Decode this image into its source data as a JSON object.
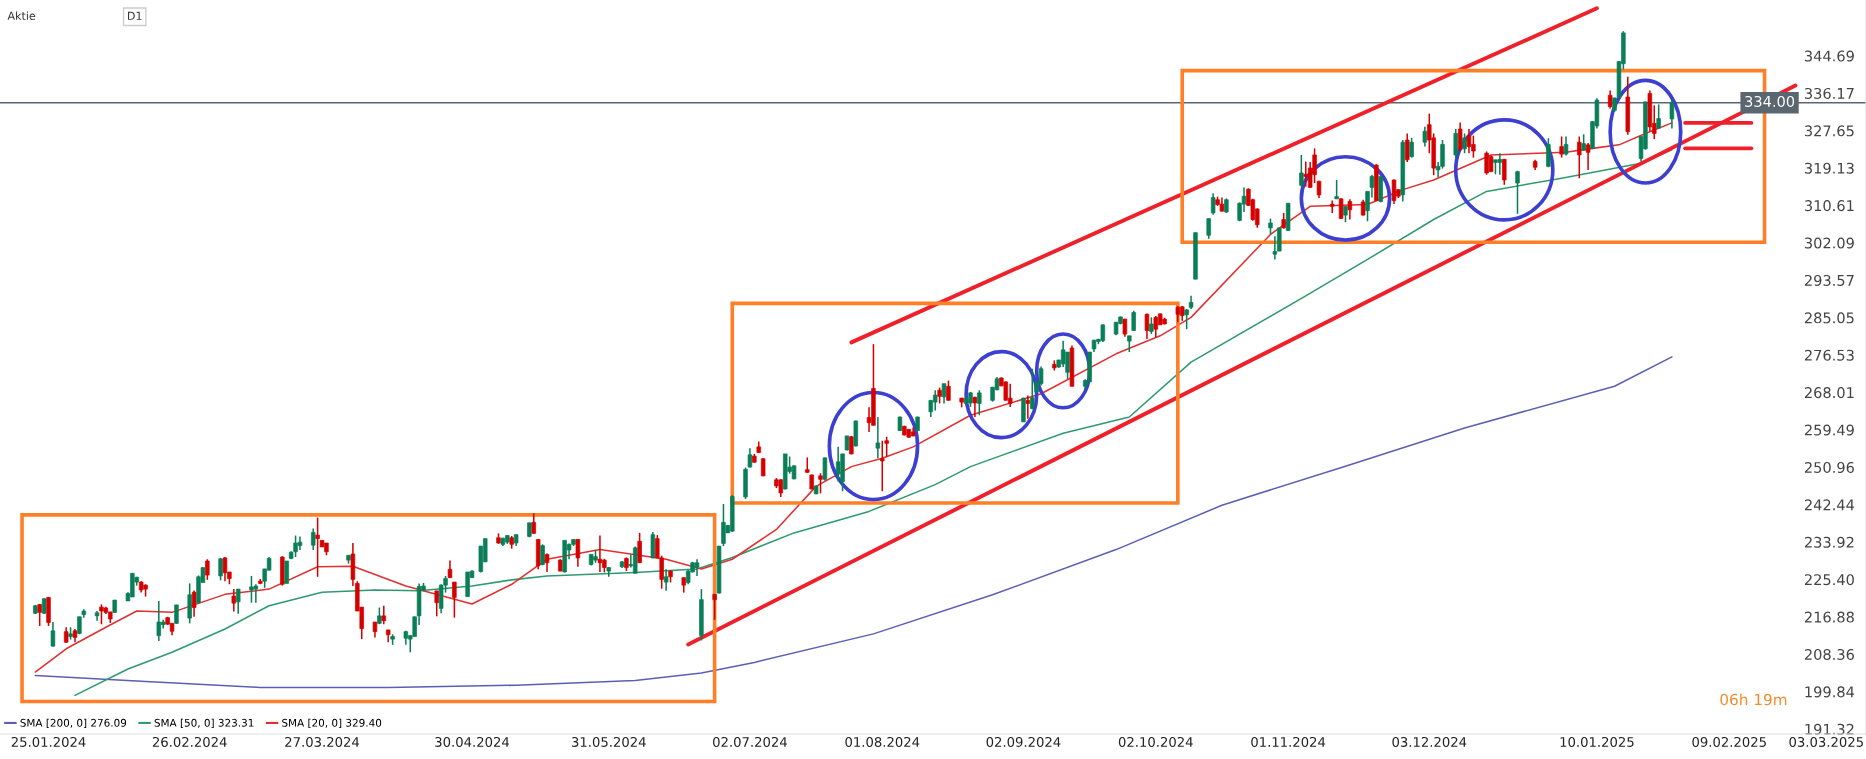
{
  "chart_data": {
    "type": "candlestick",
    "title": "Aktie",
    "subtitle": "D1",
    "annotations": [
      "06h 19m"
    ],
    "colors": [
      "#0a7e57",
      "#d50000",
      "#0a7e57",
      "#d50000",
      "#0a7e57",
      "#d50000",
      "#0a7e57",
      "#d50000",
      "#0a7e57",
      "#0a7e57",
      "#0a7e57",
      "#d50000",
      "#d50000",
      "#d50000",
      "#0a7e57",
      "#0a7e57",
      "#0a7e57",
      "#0a7e57",
      "#d50000",
      "#d50000",
      "#0a7e57",
      "#0a7e57",
      "#d50000",
      "#d50000",
      "#0a7e57",
      "#0a7e57",
      "#d50000",
      "#0a7e57",
      "#0a7e57",
      "#d50000",
      "#0a7e57",
      "#d50000",
      "#d50000",
      "#d50000",
      "#0a7e57",
      "#0a7e57",
      "#0a7e57",
      "#d50000",
      "#0a7e57",
      "#0a7e57",
      "#d50000",
      "#0a7e57",
      "#0a7e57",
      "#0a7e57",
      "#0a7e57",
      "#0a7e57",
      "#d50000",
      "#d50000",
      "#d50000",
      "#0a7e57",
      "#d50000",
      "#d50000",
      "#d50000",
      "#d50000",
      "#0a7e57",
      "#d50000",
      "#d50000",
      "#0a7e57",
      "#0a7e57",
      "#0a7e57",
      "#0a7e57",
      "#0a7e57",
      "#0a7e57",
      "#d50000",
      "#0a7e57",
      "#0a7e57",
      "#d50000",
      "#d50000",
      "#0a7e57",
      "#0a7e57",
      "#0a7e57",
      "#0a7e57",
      "#d50000",
      "#0a7e57",
      "#0a7e57",
      "#d50000",
      "#0a7e57",
      "#0a7e57",
      "#d50000",
      "#d50000",
      "#0a7e57",
      "#d50000",
      "#d50000",
      "#0a7e57",
      "#0a7e57",
      "#0a7e57",
      "#d50000",
      "#0a7e57",
      "#0a7e57",
      "#d50000",
      "#d50000",
      "#0a7e57",
      "#0a7e57",
      "#d50000",
      "#0a7e57",
      "#0a7e57",
      "#d50000",
      "#0a7e57",
      "#d50000",
      "#d50000",
      "#0a7e57",
      "#d50000",
      "#d50000",
      "#0a7e57",
      "#0a7e57",
      "#0a7e57",
      "#0a7e57",
      "#d50000",
      "#0a7e57",
      "#0a7e57",
      "#0a7e57",
      "#0a7e57",
      "#0a7e57",
      "#0a7e57",
      "#d50000",
      "#d50000",
      "#d50000",
      "#d50000",
      "#d50000",
      "#0a7e57",
      "#0a7e57",
      "#0a7e57",
      "#d50000",
      "#d50000",
      "#0a7e57",
      "#d50000",
      "#0a7e57",
      "#0a7e57",
      "#0a7e57",
      "#0a7e57",
      "#d50000",
      "#0a7e57",
      "#d50000",
      "#d50000",
      "#0a7e57",
      "#d50000",
      "#d50000",
      "#0a7e57",
      "#d50000",
      "#d50000",
      "#d50000",
      "#0a7e57",
      "#0a7e57",
      "#0a7e57",
      "#d50000",
      "#0a7e57",
      "#d50000",
      "#d50000",
      "#0a7e57",
      "#0a7e57",
      "#d50000",
      "#0a7e57",
      "#0a7e57",
      "#0a7e57",
      "#d50000",
      "#d50000",
      "#d50000",
      "#0a7e57",
      "#d50000",
      "#0a7e57",
      "#0a7e57",
      "#0a7e57",
      "#d50000",
      "#0a7e57",
      "#0a7e57",
      "#0a7e57",
      "#d50000",
      "#0a7e57",
      "#0a7e57",
      "#0a7e57",
      "#0a7e57",
      "#0a7e57",
      "#0a7e57",
      "#0a7e57",
      "#d50000",
      "#0a7e57",
      "#0a7e57",
      "#d50000",
      "#0a7e57",
      "#d50000",
      "#d50000",
      "#d50000",
      "#d50000",
      "#d50000",
      "#0a7e57",
      "#0a7e57",
      "#0a7e57",
      "#0a7e57",
      "#0a7e57",
      "#d50000",
      "#d50000",
      "#0a7e57",
      "#0a7e57",
      "#0a7e57",
      "#d50000",
      "#d50000",
      "#d50000",
      "#0a7e57",
      "#0a7e57",
      "#0a7e57",
      "#d50000",
      "#0a7e57",
      "#0a7e57",
      "#d50000",
      "#d50000",
      "#d50000",
      "#d50000",
      "#d50000",
      "#0a7e57",
      "#d50000",
      "#0a7e57",
      "#d50000",
      "#d50000",
      "#0a7e57",
      "#0a7e57",
      "#d50000",
      "#0a7e57",
      "#d50000",
      "#d50000",
      "#0a7e57",
      "#d50000",
      "#0a7e57",
      "#0a7e57",
      "#d50000",
      "#d50000",
      "#0a7e57",
      "#0a7e57",
      "#0a7e57",
      "#d50000",
      "#0a7e57",
      "#d50000",
      "#d50000",
      "#d50000",
      "#d50000",
      "#0a7e57",
      "#0a7e57",
      "#d50000",
      "#0a7e57",
      "#d50000",
      "#0a7e57",
      "#d50000",
      "#0a7e57",
      "#d50000",
      "#0a7e57",
      "#d50000",
      "#0a7e57",
      "#0a7e57",
      "#d50000",
      "#0a7e57",
      "#0a7e57",
      "#0a7e57",
      "#d50000",
      "#0a7e57",
      "#0a7e57",
      "#d50000",
      "#d50000",
      "#0a7e57",
      "#0a7e57"
    ],
    "x": [
      "2024-01-22",
      "2024-01-23",
      "2024-01-24",
      "2024-01-25",
      "2024-01-26",
      "2024-01-29",
      "2024-01-30",
      "2024-01-31",
      "2024-02-01",
      "2024-02-02",
      "2024-02-05",
      "2024-02-06",
      "2024-02-07",
      "2024-02-08",
      "2024-02-09",
      "2024-02-12",
      "2024-02-13",
      "2024-02-14",
      "2024-02-15",
      "2024-02-16",
      "2024-02-19",
      "2024-02-20",
      "2024-02-21",
      "2024-02-22",
      "2024-02-23",
      "2024-02-26",
      "2024-02-27",
      "2024-02-28",
      "2024-02-29",
      "2024-03-01",
      "2024-03-04",
      "2024-03-05",
      "2024-03-06",
      "2024-03-07",
      "2024-03-08",
      "2024-03-11",
      "2024-03-12",
      "2024-03-13",
      "2024-03-14",
      "2024-03-15",
      "2024-03-18",
      "2024-03-19",
      "2024-03-20",
      "2024-03-21",
      "2024-03-22",
      "2024-03-25",
      "2024-03-26",
      "2024-03-27",
      "2024-03-28",
      "2024-04-02",
      "2024-04-03",
      "2024-04-04",
      "2024-04-05",
      "2024-04-08",
      "2024-04-09",
      "2024-04-10",
      "2024-04-11",
      "2024-04-12",
      "2024-04-15",
      "2024-04-16",
      "2024-04-17",
      "2024-04-18",
      "2024-04-19",
      "2024-04-22",
      "2024-04-23",
      "2024-04-24",
      "2024-04-25",
      "2024-04-26",
      "2024-04-29",
      "2024-04-30",
      "2024-05-02",
      "2024-05-03",
      "2024-05-06",
      "2024-05-07",
      "2024-05-08",
      "2024-05-09",
      "2024-05-10",
      "2024-05-13",
      "2024-05-14",
      "2024-05-15",
      "2024-05-16",
      "2024-05-17",
      "2024-05-20",
      "2024-05-21",
      "2024-05-22",
      "2024-05-23",
      "2024-05-24",
      "2024-05-27",
      "2024-05-28",
      "2024-05-29",
      "2024-05-30",
      "2024-05-31",
      "2024-06-03",
      "2024-06-04",
      "2024-06-05",
      "2024-06-06",
      "2024-06-07",
      "2024-06-10",
      "2024-06-11",
      "2024-06-12",
      "2024-06-13",
      "2024-06-14",
      "2024-06-17",
      "2024-06-18",
      "2024-06-19",
      "2024-06-20",
      "2024-06-21",
      "2024-06-24",
      "2024-06-25",
      "2024-06-26",
      "2024-06-27",
      "2024-06-28",
      "2024-07-01",
      "2024-07-02",
      "2024-07-03",
      "2024-07-04",
      "2024-07-05",
      "2024-07-08",
      "2024-07-09",
      "2024-07-10",
      "2024-07-11",
      "2024-07-12",
      "2024-07-15",
      "2024-07-16",
      "2024-07-17",
      "2024-07-18",
      "2024-07-19",
      "2024-07-22",
      "2024-07-23",
      "2024-07-24",
      "2024-07-25",
      "2024-07-26",
      "2024-07-29",
      "2024-07-30",
      "2024-07-31",
      "2024-08-01",
      "2024-08-02",
      "2024-08-05",
      "2024-08-06",
      "2024-08-07",
      "2024-08-08",
      "2024-08-09",
      "2024-08-12",
      "2024-08-13",
      "2024-08-14",
      "2024-08-15",
      "2024-08-16",
      "2024-08-19",
      "2024-08-20",
      "2024-08-21",
      "2024-08-22",
      "2024-08-23",
      "2024-08-26",
      "2024-08-27",
      "2024-08-28",
      "2024-08-29",
      "2024-08-30",
      "2024-09-02",
      "2024-09-03",
      "2024-09-04",
      "2024-09-05",
      "2024-09-06",
      "2024-09-09",
      "2024-09-10",
      "2024-09-11",
      "2024-09-12",
      "2024-09-13",
      "2024-09-16",
      "2024-09-17",
      "2024-09-18",
      "2024-09-19",
      "2024-09-20",
      "2024-09-23",
      "2024-09-24",
      "2024-09-25",
      "2024-09-26",
      "2024-09-27",
      "2024-09-30",
      "2024-10-01",
      "2024-10-02",
      "2024-10-03",
      "2024-10-04",
      "2024-10-07",
      "2024-10-08",
      "2024-10-09",
      "2024-10-10",
      "2024-10-11",
      "2024-10-14",
      "2024-10-15",
      "2024-10-16",
      "2024-10-17",
      "2024-10-18",
      "2024-10-21",
      "2024-10-22",
      "2024-10-23",
      "2024-10-24",
      "2024-10-25",
      "2024-10-28",
      "2024-10-29",
      "2024-10-30",
      "2024-10-31",
      "2024-11-01",
      "2024-11-04",
      "2024-11-05",
      "2024-11-06",
      "2024-11-07",
      "2024-11-08",
      "2024-11-11",
      "2024-11-12",
      "2024-11-13",
      "2024-11-14",
      "2024-11-15",
      "2024-11-18",
      "2024-11-19",
      "2024-11-20",
      "2024-11-21",
      "2024-11-22",
      "2024-11-25",
      "2024-11-26",
      "2024-11-27",
      "2024-11-28",
      "2024-11-29",
      "2024-12-02",
      "2024-12-03",
      "2024-12-04",
      "2024-12-05",
      "2024-12-06",
      "2024-12-09",
      "2024-12-10",
      "2024-12-11",
      "2024-12-12",
      "2024-12-13",
      "2024-12-16",
      "2024-12-17",
      "2024-12-18",
      "2024-12-19",
      "2024-12-20",
      "2024-12-23",
      "2024-12-27",
      "2024-12-30",
      "2025-01-02",
      "2025-01-03",
      "2025-01-06",
      "2025-01-07",
      "2025-01-08",
      "2025-01-09",
      "2025-01-10",
      "2025-01-13",
      "2025-01-14",
      "2025-01-15",
      "2025-01-16",
      "2025-01-17",
      "2025-01-20",
      "2025-01-21",
      "2025-01-22",
      "2025-01-23",
      "2025-01-24",
      "2025-01-27"
    ],
    "ohlc": [
      [
        217.7,
        219.6,
        217.5,
        219.4
      ],
      [
        219.7,
        219.8,
        214.8,
        217.9
      ],
      [
        217.7,
        221.1,
        217.5,
        221.0
      ],
      [
        221.3,
        221.4,
        214.8,
        215.6
      ],
      [
        210.2,
        215.7,
        210.1,
        213.7
      ],
      [
        213.5,
        214.5,
        210.9,
        211.1
      ],
      [
        212.4,
        214.5,
        211.7,
        213.0
      ],
      [
        213.7,
        214.1,
        211.1,
        212.2
      ],
      [
        213.1,
        216.9,
        212.9,
        216.9
      ],
      [
        217.4,
        218.6,
        216.7,
        218.2
      ],
      [
        217.1,
        218.2,
        216.0,
        217.8
      ],
      [
        219.1,
        219.7,
        215.2,
        218.2
      ],
      [
        218.9,
        219.2,
        217.5,
        217.9
      ],
      [
        218.0,
        218.0,
        215.5,
        216.4
      ],
      [
        217.9,
        220.7,
        217.8,
        220.7
      ],
      [
        220.5,
        222.5,
        220.5,
        222.2
      ],
      [
        221.4,
        226.8,
        221.4,
        226.8
      ],
      [
        224.8,
        226.0,
        224.0,
        225.9
      ],
      [
        224.8,
        225.0,
        222.4,
        223.0
      ],
      [
        224.1,
        224.3,
        221.5,
        223.2
      ],
      [
        212.6,
        220.5,
        211.4,
        215.7
      ],
      [
        215.1,
        216.2,
        214.2,
        215.7
      ],
      [
        216.7,
        216.9,
        215.1,
        215.2
      ],
      [
        215.4,
        215.5,
        212.7,
        213.6
      ],
      [
        215.4,
        219.6,
        215.3,
        219.6
      ],
      [
        216.6,
        224.5,
        215.4,
        221.9
      ],
      [
        222.5,
        222.9,
        216.9,
        219.0
      ],
      [
        220.1,
        226.3,
        219.9,
        226.0
      ],
      [
        224.7,
        228.1,
        224.7,
        228.1
      ],
      [
        229.6,
        230.0,
        225.3,
        226.4
      ],
      [
        226.2,
        230.3,
        225.2,
        230.1
      ],
      [
        230.3,
        230.5,
        225.0,
        226.9
      ],
      [
        227.1,
        227.1,
        224.3,
        225.6
      ],
      [
        221.6,
        223.2,
        218.1,
        220.0
      ],
      [
        220.3,
        223.2,
        217.6,
        223.2
      ],
      [
        223.0,
        226.2,
        220.1,
        223.7
      ],
      [
        223.2,
        224.3,
        220.1,
        223.9
      ],
      [
        225.0,
        225.5,
        224.3,
        224.5
      ],
      [
        225.0,
        227.8,
        223.5,
        227.8
      ],
      [
        227.5,
        230.5,
        227.5,
        230.2
      ],
      [
        230.5,
        230.7,
        224.0,
        224.3
      ],
      [
        224.5,
        229.6,
        224.5,
        229.6
      ],
      [
        230.2,
        231.8,
        230.0,
        231.6
      ],
      [
        231.7,
        235.4,
        230.5,
        233.7
      ],
      [
        233.1,
        235.2,
        232.1,
        233.9
      ],
      [
        233.2,
        237.0,
        232.1,
        236.1
      ],
      [
        235.5,
        239.5,
        226.0,
        234.7
      ],
      [
        234.3,
        234.3,
        232.8,
        232.8
      ],
      [
        233.7,
        233.7,
        230.9,
        231.7
      ],
      [
        229.8,
        230.9,
        229.0,
        230.9
      ],
      [
        231.2,
        233.7,
        223.9,
        225.4
      ],
      [
        224.5,
        225.0,
        218.2,
        218.2
      ],
      [
        219.1,
        219.1,
        211.8,
        214.2
      ],
      [
        215.7,
        215.7,
        212.2,
        213.5
      ],
      [
        215.4,
        219.0,
        215.2,
        217.1
      ],
      [
        217.1,
        219.4,
        215.2,
        216.0
      ],
      [
        213.9,
        213.9,
        211.1,
        212.8
      ],
      [
        211.8,
        212.9,
        210.5,
        212.4
      ],
      [
        212.0,
        213.7,
        210.5,
        213.5
      ],
      [
        211.8,
        212.7,
        208.8,
        212.6
      ],
      [
        212.4,
        216.9,
        212.4,
        216.9
      ],
      [
        217.1,
        224.5,
        215.0,
        223.8
      ],
      [
        223.0,
        224.6,
        222.7,
        223.9
      ],
      [
        222.8,
        222.8,
        217.0,
        220.1
      ],
      [
        218.8,
        224.3,
        217.7,
        224.1
      ],
      [
        224.1,
        226.2,
        222.4,
        225.6
      ],
      [
        227.7,
        229.7,
        225.8,
        225.8
      ],
      [
        224.8,
        224.8,
        216.7,
        221.3
      ],
      [
        221.5,
        227.1,
        221.5,
        227.1
      ],
      [
        225.8,
        227.5,
        225.7,
        227.3
      ],
      [
        227.2,
        233.0,
        227.0,
        233.0
      ],
      [
        229.4,
        234.7,
        229.4,
        234.7
      ],
      [
        234.9,
        235.9,
        233.5,
        233.7
      ],
      [
        233.4,
        234.9,
        233.0,
        234.8
      ],
      [
        233.9,
        235.5,
        233.5,
        235.4
      ],
      [
        234.9,
        235.3,
        232.4,
        233.4
      ],
      [
        233.7,
        235.7,
        233.0,
        235.6
      ],
      [
        235.2,
        238.3,
        235.0,
        238.3
      ],
      [
        238.4,
        240.5,
        235.8,
        235.9
      ],
      [
        234.5,
        234.6,
        227.7,
        228.5
      ],
      [
        228.8,
        233.4,
        228.6,
        233.1
      ],
      [
        231.1,
        231.3,
        227.1,
        229.2
      ],
      [
        229.8,
        230.0,
        227.3,
        227.3
      ],
      [
        227.1,
        234.3,
        227.0,
        234.3
      ],
      [
        232.1,
        233.6,
        230.0,
        233.4
      ],
      [
        233.4,
        234.6,
        233.0,
        234.5
      ],
      [
        234.5,
        234.6,
        228.3,
        230.3
      ],
      [
        228.8,
        231.1,
        228.6,
        231.1
      ],
      [
        229.8,
        232.1,
        229.2,
        230.6
      ],
      [
        230.0,
        235.4,
        227.1,
        229.2
      ],
      [
        229.8,
        230.1,
        227.0,
        228.1
      ],
      [
        227.3,
        228.2,
        226.0,
        228.1
      ],
      [
        228.3,
        229.6,
        228.0,
        229.4
      ],
      [
        230.2,
        230.4,
        227.3,
        228.1
      ],
      [
        228.5,
        231.1,
        228.1,
        228.8
      ],
      [
        226.8,
        232.9,
        226.8,
        232.6
      ],
      [
        234.1,
        236.0,
        229.2,
        229.2
      ],
      [
        230.3,
        236.2,
        230.2,
        235.6
      ],
      [
        234.7,
        235.5,
        230.2,
        230.3
      ],
      [
        230.3,
        230.8,
        223.3,
        225.4
      ],
      [
        224.8,
        227.7,
        222.8,
        226.0
      ],
      [
        227.3,
        227.5,
        224.7,
        226.0
      ],
      [
        225.8,
        225.9,
        222.4,
        224.1
      ],
      [
        224.7,
        227.6,
        224.3,
        227.3
      ],
      [
        227.1,
        229.4,
        227.0,
        229.2
      ],
      [
        228.2,
        230.0,
        226.2,
        229.2
      ],
      [
        212.6,
        223.2,
        211.5,
        220.8
      ],
      [
        222.0,
        222.1,
        216.2,
        220.8
      ],
      [
        222.3,
        233.0,
        222.2,
        233.0
      ],
      [
        233.6,
        242.6,
        233.0,
        238.4
      ],
      [
        236.0,
        237.8,
        236.0,
        237.7
      ],
      [
        236.4,
        244.6,
        236.2,
        244.3
      ],
      [
        244.2,
        250.9,
        243.7,
        250.5
      ],
      [
        251.0,
        255.3,
        250.9,
        253.8
      ],
      [
        253.5,
        254.0,
        252.0,
        252.1
      ],
      [
        255.6,
        256.8,
        254.2,
        254.3
      ],
      [
        252.9,
        253.0,
        248.9,
        249.0
      ],
      [
        248.1,
        248.5,
        246.2,
        246.7
      ],
      [
        248.1,
        248.2,
        244.2,
        245.1
      ],
      [
        246.0,
        254.0,
        245.9,
        254.0
      ],
      [
        250.0,
        253.4,
        249.5,
        251.0
      ],
      [
        248.3,
        251.3,
        248.2,
        251.3
      ],
      [
        250.4,
        253.2,
        249.7,
        249.8
      ],
      [
        249.2,
        249.3,
        245.9,
        246.0
      ],
      [
        244.9,
        246.8,
        244.8,
        246.7
      ],
      [
        249.0,
        249.6,
        245.0,
        248.2
      ],
      [
        248.2,
        253.2,
        247.9,
        253.1
      ],
      [
        249.4,
        255.6,
        247.7,
        252.2
      ],
      [
        247.7,
        254.0,
        245.5,
        254.0
      ],
      [
        254.9,
        258.1,
        254.8,
        258.1
      ],
      [
        257.9,
        258.1,
        253.9,
        254.0
      ],
      [
        255.8,
        261.6,
        255.7,
        261.5
      ],
      [
        262.3,
        264.6,
        259.0,
        261.1
      ],
      [
        268.9,
        279.0,
        260.5,
        260.5
      ],
      [
        255.3,
        262.4,
        253.0,
        256.5
      ],
      [
        252.9,
        257.0,
        245.5,
        252.4
      ],
      [
        257.0,
        257.9,
        253.4,
        256.4
      ],
      [
        259.3,
        262.5,
        259.2,
        262.4
      ],
      [
        260.3,
        260.4,
        258.2,
        258.3
      ],
      [
        259.6,
        259.6,
        257.7,
        257.8
      ],
      [
        259.0,
        260.0,
        258.0,
        258.1
      ],
      [
        259.3,
        262.5,
        259.2,
        262.4
      ],
      [
        263.6,
        266.2,
        262.4,
        266.2
      ],
      [
        265.8,
        268.5,
        263.9,
        267.4
      ],
      [
        268.5,
        269.1,
        265.5,
        267.1
      ],
      [
        267.0,
        270.0,
        265.5,
        270.0
      ],
      [
        269.4,
        270.7,
        266.2,
        266.2
      ],
      [
        266.7,
        266.8,
        264.6,
        265.8
      ],
      [
        265.5,
        266.8,
        265.2,
        266.7
      ],
      [
        265.6,
        268.1,
        264.7,
        267.9
      ],
      [
        266.9,
        267.0,
        262.4,
        265.6
      ],
      [
        265.5,
        268.5,
        262.8,
        267.9
      ],
      [
        266.2,
        269.2,
        265.9,
        269.2
      ],
      [
        268.6,
        271.5,
        268.5,
        271.1
      ],
      [
        271.3,
        271.4,
        269.4,
        269.5
      ],
      [
        270.4,
        270.5,
        266.2,
        266.2
      ],
      [
        266.7,
        270.0,
        264.7,
        265.5
      ],
      [
        261.3,
        266.8,
        261.3,
        266.7
      ],
      [
        266.2,
        267.3,
        262.0,
        265.5
      ],
      [
        264.3,
        273.4,
        264.2,
        266.8
      ],
      [
        268.1,
        270.4,
        267.9,
        270.4
      ],
      [
        270.0,
        273.9,
        269.6,
        273.4
      ],
      [
        274.4,
        275.3,
        273.0,
        273.6
      ],
      [
        273.8,
        275.4,
        273.6,
        275.4
      ],
      [
        274.5,
        279.8,
        273.8,
        277.7
      ],
      [
        272.6,
        277.2,
        271.1,
        277.2
      ],
      [
        278.1,
        278.7,
        269.4,
        269.4
      ],
      [
        269.4,
        271.0,
        268.5,
        270.7
      ],
      [
        270.4,
        277.2,
        270.4,
        277.2
      ],
      [
        277.9,
        280.0,
        277.2,
        279.9
      ],
      [
        279.6,
        280.2,
        279.0,
        280.1
      ],
      [
        279.8,
        283.5,
        279.5,
        283.4
      ],
      [
        281.3,
        284.0,
        281.0,
        284.0
      ],
      [
        283.7,
        285.3,
        283.5,
        285.2
      ],
      [
        284.7,
        284.8,
        280.7,
        281.3
      ],
      [
        279.7,
        280.9,
        277.2,
        280.9
      ],
      [
        282.1,
        286.6,
        282.0,
        286.2
      ],
      [
        285.8,
        286.0,
        280.2,
        282.1
      ],
      [
        281.9,
        285.1,
        281.3,
        283.6
      ],
      [
        285.1,
        285.4,
        280.6,
        282.4
      ],
      [
        285.9,
        286.0,
        283.4,
        283.4
      ],
      [
        284.7,
        285.0,
        283.5,
        283.6
      ],
      [
        287.4,
        287.7,
        284.0,
        285.8
      ],
      [
        287.5,
        287.7,
        284.3,
        285.5
      ],
      [
        285.7,
        287.0,
        282.4,
        286.8
      ],
      [
        287.4,
        290.0,
        287.0,
        288.5
      ],
      [
        293.8,
        304.4,
        293.8,
        304.4
      ],
      [
        303.8,
        307.6,
        303.0,
        307.6
      ],
      [
        308.9,
        313.4,
        308.5,
        312.4
      ],
      [
        311.9,
        312.6,
        310.5,
        310.8
      ],
      [
        310.9,
        312.4,
        309.2,
        309.3
      ],
      [
        309.1,
        312.2,
        308.9,
        311.9
      ],
      [
        307.2,
        311.3,
        307.0,
        311.1
      ],
      [
        310.9,
        314.7,
        309.1,
        312.7
      ],
      [
        314.3,
        314.5,
        310.6,
        310.6
      ],
      [
        311.9,
        312.1,
        307.1,
        307.4
      ],
      [
        309.8,
        309.9,
        305.5,
        306.2
      ],
      [
        305.5,
        307.6,
        304.0,
        306.6
      ],
      [
        299.5,
        303.6,
        298.3,
        300.1
      ],
      [
        300.2,
        305.5,
        300.2,
        305.5
      ],
      [
        307.4,
        308.9,
        305.3,
        305.5
      ],
      [
        304.9,
        311.1,
        304.8,
        311.1
      ],
      [
        315.2,
        322.1,
        314.9,
        318.0
      ],
      [
        317.7,
        320.6,
        314.9,
        317.2
      ],
      [
        319.1,
        320.5,
        314.7,
        314.7
      ],
      [
        322.1,
        323.6,
        315.7,
        317.6
      ],
      [
        316.1,
        316.2,
        312.3,
        313.0
      ],
      [
        310.9,
        311.7,
        308.9,
        310.4
      ],
      [
        312.1,
        316.4,
        312.1,
        312.6
      ],
      [
        312.1,
        312.3,
        307.6,
        307.6
      ],
      [
        308.4,
        310.4,
        306.8,
        310.4
      ],
      [
        311.5,
        312.0,
        307.4,
        309.6
      ],
      [
        311.4,
        311.9,
        308.3,
        308.4
      ],
      [
        309.4,
        313.8,
        307.0,
        313.8
      ],
      [
        314.7,
        317.6,
        312.4,
        317.2
      ],
      [
        319.8,
        320.0,
        311.7,
        311.7
      ],
      [
        311.5,
        317.2,
        311.3,
        317.2
      ],
      [
        316.4,
        316.5,
        310.9,
        311.7
      ],
      [
        314.2,
        314.3,
        312.3,
        312.7
      ],
      [
        313.0,
        325.5,
        311.5,
        325.0
      ],
      [
        325.5,
        327.0,
        320.5,
        321.0
      ],
      [
        321.7,
        326.0,
        321.5,
        325.0
      ],
      [
        325.0,
        328.5,
        324.0,
        327.5
      ],
      [
        329.0,
        331.5,
        322.5,
        325.5
      ],
      [
        326.0,
        327.0,
        317.5,
        319.1
      ],
      [
        318.7,
        320.5,
        317.0,
        319.5
      ],
      [
        319.5,
        325.5,
        319.0,
        324.5
      ],
      [
        322.1,
        328.0,
        321.5,
        327.0
      ],
      [
        328.0,
        329.5,
        323.0,
        323.3
      ],
      [
        323.5,
        327.0,
        322.5,
        326.0
      ],
      [
        326.5,
        328.0,
        322.5,
        324.0
      ],
      [
        324.5,
        326.5,
        321.5,
        323.0
      ],
      [
        322.5,
        322.9,
        317.6,
        318.0
      ],
      [
        321.7,
        322.0,
        318.2,
        318.3
      ],
      [
        320.4,
        321.0,
        317.7,
        321.0
      ],
      [
        320.4,
        322.5,
        317.6,
        321.1
      ],
      [
        321.1,
        321.2,
        315.3,
        316.4
      ],
      [
        315.7,
        318.5,
        308.7,
        318.3
      ],
      [
        320.6,
        321.0,
        318.7,
        319.3
      ],
      [
        319.5,
        325.9,
        319.3,
        324.5
      ],
      [
        324.0,
        326.3,
        321.5,
        322.3
      ],
      [
        322.3,
        326.3,
        322.0,
        324.5
      ],
      [
        325.0,
        326.3,
        316.8,
        322.1
      ],
      [
        323.2,
        326.8,
        323.0,
        324.7
      ],
      [
        324.4,
        324.8,
        318.7,
        322.7
      ],
      [
        323.6,
        329.8,
        323.4,
        329.7
      ],
      [
        328.7,
        335.0,
        328.1,
        334.6
      ],
      [
        335.7,
        336.8,
        332.7,
        333.1
      ],
      [
        332.3,
        335.1,
        331.9,
        335.1
      ],
      [
        335.3,
        343.4,
        335.1,
        343.4
      ],
      [
        342.9,
        350.3,
        341.6,
        349.9
      ],
      [
        335.3,
        339.9,
        326.7,
        327.4
      ],
      [
        321.3,
        326.3,
        320.6,
        326.3
      ],
      [
        323.5,
        334.2,
        323.3,
        334.2
      ],
      [
        336.1,
        336.8,
        327.5,
        328.5
      ],
      [
        329.3,
        333.4,
        325.7,
        327.0
      ],
      [
        328.2,
        333.6,
        328.1,
        330.4
      ],
      [
        330.3,
        334.6,
        328.1,
        334.0
      ]
    ],
    "series": [
      {
        "type": "line",
        "name": "SMA [200, 0] 276.09",
        "color": "#5b5fb3",
        "x": [
          "2024-01-22",
          "2024-02-15",
          "2024-03-13",
          "2024-04-11",
          "2024-05-10",
          "2024-06-06",
          "2024-06-21",
          "2024-07-03",
          "2024-07-30",
          "2024-08-26",
          "2024-09-23",
          "2024-10-17",
          "2024-11-14",
          "2024-12-11",
          "2025-01-14",
          "2025-01-27"
        ],
        "values": [
          203.5,
          202.2,
          200.8,
          200.8,
          201.3,
          202.4,
          204.1,
          206.5,
          213.0,
          221.9,
          232.2,
          242.3,
          251.2,
          259.9,
          269.4,
          276.1
        ]
      },
      {
        "type": "line",
        "name": "SMA [50, 0] 323.31",
        "color": "#2e9a6e",
        "x": [
          "2024-01-31",
          "2024-02-12",
          "2024-02-22",
          "2024-03-05",
          "2024-03-15",
          "2024-03-27",
          "2024-04-08",
          "2024-04-18",
          "2024-04-30",
          "2024-05-09",
          "2024-05-17",
          "2024-06-06",
          "2024-06-20",
          "2024-06-28",
          "2024-07-12",
          "2024-07-29",
          "2024-08-13",
          "2024-08-21",
          "2024-09-11",
          "2024-09-26",
          "2024-10-10",
          "2024-11-05",
          "2024-11-19",
          "2024-12-04",
          "2024-12-16",
          "2025-01-02",
          "2025-01-20",
          "2025-01-27"
        ],
        "values": [
          199.0,
          205.0,
          208.8,
          214.1,
          219.4,
          222.5,
          223.0,
          222.8,
          223.9,
          225.3,
          226.2,
          227.0,
          227.8,
          230.4,
          236.0,
          240.9,
          247.0,
          251.1,
          258.7,
          262.4,
          274.9,
          290.0,
          298.3,
          307.4,
          313.8,
          316.8,
          320.2,
          323.3
        ]
      },
      {
        "type": "line",
        "name": "SMA [20, 0] 329.40",
        "color": "#e03030",
        "x": [
          "2024-01-22",
          "2024-01-29",
          "2024-02-07",
          "2024-02-14",
          "2024-02-22",
          "2024-03-05",
          "2024-03-15",
          "2024-03-26",
          "2024-04-03",
          "2024-04-15",
          "2024-04-30",
          "2024-05-09",
          "2024-05-17",
          "2024-05-29",
          "2024-06-13",
          "2024-06-21",
          "2024-06-28",
          "2024-07-08",
          "2024-07-17",
          "2024-07-25",
          "2024-08-01",
          "2024-08-08",
          "2024-08-21",
          "2024-09-06",
          "2024-09-23",
          "2024-10-03",
          "2024-10-10",
          "2024-10-28",
          "2024-11-06",
          "2024-11-19",
          "2024-11-27",
          "2024-12-04",
          "2024-12-17",
          "2025-01-03",
          "2025-01-09",
          "2025-01-15",
          "2025-01-21",
          "2025-01-27"
        ],
        "values": [
          204.3,
          209.6,
          214.5,
          218.2,
          217.9,
          222.0,
          223.2,
          228.3,
          228.4,
          223.9,
          219.8,
          224.3,
          230.0,
          232.2,
          230.0,
          227.8,
          230.0,
          236.8,
          246.6,
          251.1,
          253.0,
          255.6,
          262.8,
          267.7,
          276.8,
          280.9,
          285.1,
          304.0,
          310.4,
          310.8,
          314.2,
          316.4,
          322.1,
          322.7,
          323.6,
          324.4,
          327.0,
          329.4
        ]
      },
      {
        "type": "line",
        "color": "#f0202a",
        "x": [
          "2024-07-25",
          "2025-01-10"
        ],
        "values": [
          279.4,
          355.5
        ]
      },
      {
        "type": "line",
        "color": "#f0202a",
        "x": [
          "2024-06-18",
          "2025-02-24"
        ],
        "values": [
          210.6,
          337.9
        ]
      },
      {
        "type": "line",
        "color": "#f0202a",
        "x": [
          "2025-01-30",
          "2025-02-14"
        ],
        "values": [
          329.4,
          329.4
        ]
      },
      {
        "type": "line",
        "color": "#f0202a",
        "x": [
          "2025-01-30",
          "2025-02-14"
        ],
        "values": [
          323.6,
          323.6
        ]
      }
    ],
    "ref_lines": [
      {
        "axis": "y",
        "value": 334.0,
        "label": "334.00",
        "color": "#5a6670"
      }
    ],
    "xlim": [
      "2024-01-14",
      "2025-03-12"
    ],
    "xticks": [
      {
        "value": "2024-01-25",
        "label": "25.01.2024"
      },
      {
        "value": "2024-02-26",
        "label": "26.02.2024"
      },
      {
        "value": "2024-03-27",
        "label": "27.03.2024"
      },
      {
        "value": "2024-04-30",
        "label": "30.04.2024"
      },
      {
        "value": "2024-05-31",
        "label": "31.05.2024"
      },
      {
        "value": "2024-07-02",
        "label": "02.07.2024"
      },
      {
        "value": "2024-08-01",
        "label": "01.08.2024"
      },
      {
        "value": "2024-09-02",
        "label": "02.09.2024"
      },
      {
        "value": "2024-10-02",
        "label": "02.10.2024"
      },
      {
        "value": "2024-11-01",
        "label": "01.11.2024"
      },
      {
        "value": "2024-12-03",
        "label": "03.12.2024"
      },
      {
        "value": "2025-01-10",
        "label": "10.01.2025"
      },
      {
        "value": "2025-02-09",
        "label": "09.02.2025"
      },
      {
        "value": "2025-03-03",
        "label": "03.03.2025"
      }
    ],
    "ylim": [
      190.2,
      357.4
    ],
    "yticks": [
      191.32,
      199.84,
      208.36,
      216.88,
      {
        "value": 225.4,
        "label": "225.40"
      },
      233.92,
      242.44,
      250.96,
      259.49,
      268.01,
      276.53,
      285.05,
      293.57,
      302.09,
      310.61,
      319.13,
      327.65,
      336.17,
      344.69
    ],
    "legend": "bottom left"
  }
}
